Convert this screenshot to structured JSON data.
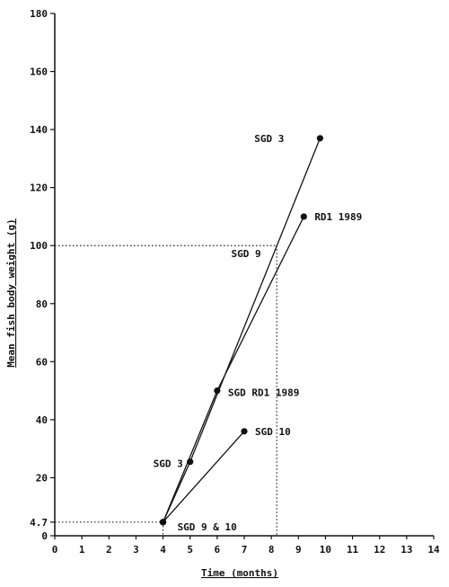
{
  "chart_data": {
    "type": "line",
    "title": "",
    "xlabel": "Time (months)",
    "ylabel": "Mean fish body weight (g)",
    "xlim": [
      0,
      14
    ],
    "ylim": [
      0,
      180
    ],
    "x_ticks": [
      "0",
      "1",
      "2",
      "3",
      "4",
      "5",
      "6",
      "7",
      "8",
      "9",
      "10",
      "11",
      "12",
      "13",
      "14"
    ],
    "y_ticks": [
      {
        "value": 0,
        "label": "0"
      },
      {
        "value": 4.7,
        "label": "4.7"
      },
      {
        "value": 20,
        "label": "20"
      },
      {
        "value": 40,
        "label": "40"
      },
      {
        "value": 60,
        "label": "60"
      },
      {
        "value": 80,
        "label": "80"
      },
      {
        "value": 100,
        "label": "100"
      },
      {
        "value": 120,
        "label": "120"
      },
      {
        "value": 140,
        "label": "140"
      },
      {
        "value": 160,
        "label": "160"
      },
      {
        "value": 180,
        "label": "180"
      }
    ],
    "grid": false,
    "series": [
      {
        "x": [
          4,
          5,
          9.8
        ],
        "y": [
          4.7,
          25.5,
          137
        ]
      },
      {
        "x": [
          4,
          6,
          9.2
        ],
        "y": [
          4.7,
          50,
          110
        ]
      },
      {
        "x": [
          4,
          7
        ],
        "y": [
          4.7,
          36
        ]
      }
    ],
    "reference_lines": [
      {
        "points": [
          [
            0,
            4.7
          ],
          [
            4,
            4.7
          ]
        ]
      },
      {
        "points": [
          [
            4,
            4.7
          ],
          [
            4,
            0
          ]
        ]
      },
      {
        "points": [
          [
            0,
            100
          ],
          [
            8.2,
            100
          ]
        ]
      },
      {
        "points": [
          [
            8.2,
            100
          ],
          [
            8.2,
            0
          ]
        ]
      }
    ],
    "annotations": [
      {
        "text": "SGD 3",
        "x": 9.8,
        "y": 137
      },
      {
        "text": "RD1 1989",
        "x": 9.2,
        "y": 110
      },
      {
        "text": "SGD 9",
        "x": 7.95,
        "y": 96
      },
      {
        "text": "SGD RD1 1989",
        "x": 6,
        "y": 50
      },
      {
        "text": "SGD 3",
        "x": 5,
        "y": 25.5
      },
      {
        "text": "SGD 10",
        "x": 7,
        "y": 36
      },
      {
        "text": "SGD 9 & 10",
        "x": 4,
        "y": 4.7
      }
    ]
  }
}
